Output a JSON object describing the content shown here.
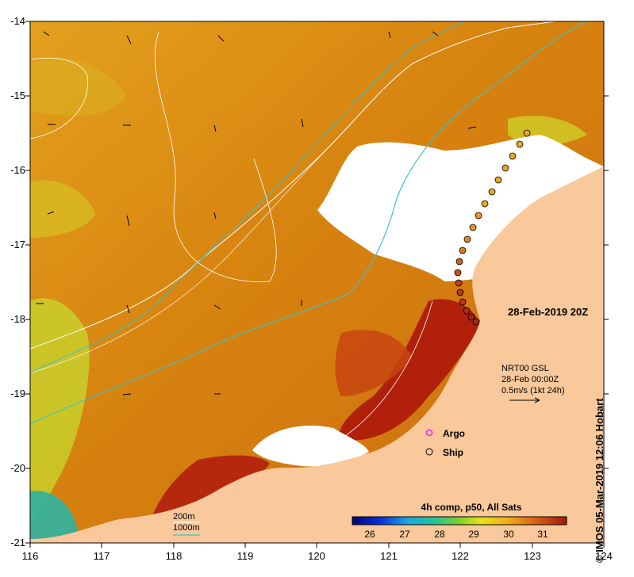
{
  "map": {
    "y_axis_labels": [
      "-14",
      "-15",
      "-16",
      "-17",
      "-18",
      "-19",
      "-20",
      "-21"
    ],
    "x_axis_labels": [
      "116",
      "117",
      "118",
      "119",
      "120",
      "121",
      "122",
      "123",
      "124"
    ],
    "date_label": "28-Feb-2019 20Z",
    "current_info": {
      "line1": "NRT00 GSL",
      "line2": "28-Feb 00:00Z",
      "line3": "0.5m/s (1kt 24h)"
    },
    "legend": {
      "argo_label": "Argo",
      "ship_label": "Ship"
    },
    "depth_legend": {
      "label_200": "200m",
      "label_1000": "1000m"
    },
    "colorbar": {
      "title": "4h comp, p50, All Sats",
      "ticks": [
        "26",
        "27",
        "28",
        "29",
        "30",
        "31"
      ]
    },
    "credit": "© IMOS 05-Mar-2019 12:06 Hobart"
  },
  "colors": {
    "land": "#f9c89b",
    "cloud": "#ffffff",
    "sst_warm": "#d9860f",
    "sst_hot": "#b21c08",
    "sst_cool": "#bcd61e",
    "current_line": "#3ec1c9"
  }
}
